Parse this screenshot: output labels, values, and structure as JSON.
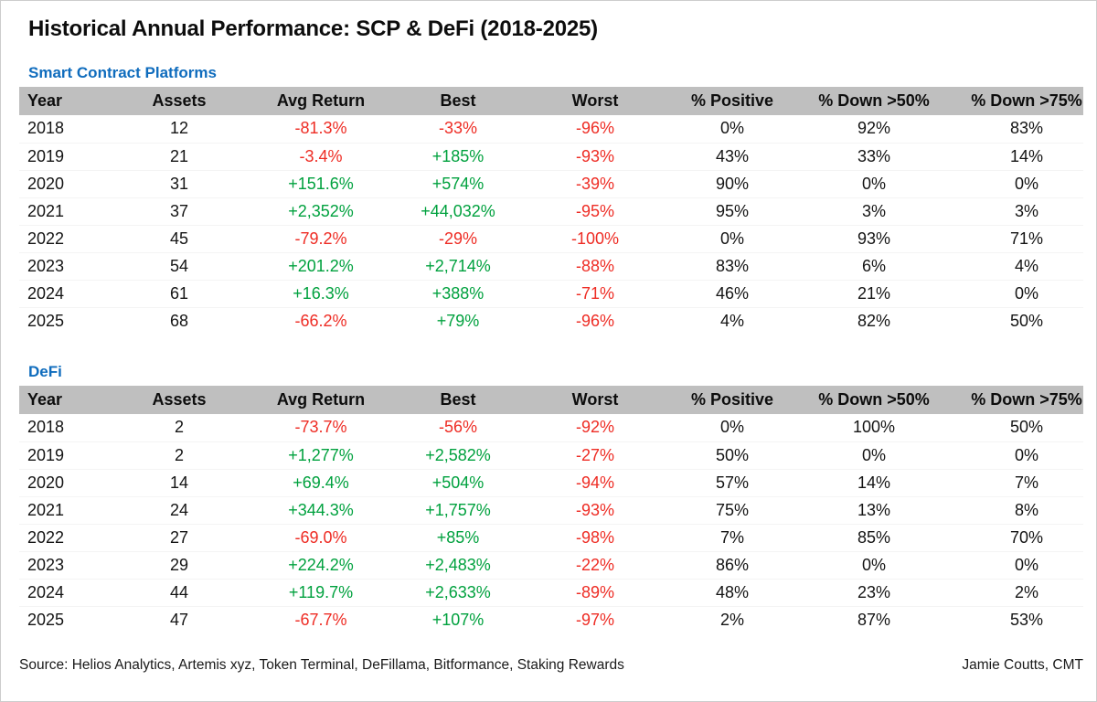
{
  "title": "Historical Annual Performance: SCP & DeFi (2018-2025)",
  "colors": {
    "pos": "#00a13e",
    "neg": "#ee2c24",
    "section": "#0f6cbd",
    "header_bg": "#bfbfbf"
  },
  "chart_data": [
    {
      "type": "table",
      "title": "Smart Contract Platforms",
      "columns": [
        "Year",
        "Assets",
        "Avg Return",
        "Best",
        "Worst",
        "% Positive",
        "% Down >50%",
        "% Down >75%"
      ],
      "rows": [
        [
          "2018",
          "12",
          "-81.3%",
          "-33%",
          "-96%",
          "0%",
          "92%",
          "83%"
        ],
        [
          "2019",
          "21",
          "-3.4%",
          "+185%",
          "-93%",
          "43%",
          "33%",
          "14%"
        ],
        [
          "2020",
          "31",
          "+151.6%",
          "+574%",
          "-39%",
          "90%",
          "0%",
          "0%"
        ],
        [
          "2021",
          "37",
          "+2,352%",
          "+44,032%",
          "-95%",
          "95%",
          "3%",
          "3%"
        ],
        [
          "2022",
          "45",
          "-79.2%",
          "-29%",
          "-100%",
          "0%",
          "93%",
          "71%"
        ],
        [
          "2023",
          "54",
          "+201.2%",
          "+2,714%",
          "-88%",
          "83%",
          "6%",
          "4%"
        ],
        [
          "2024",
          "61",
          "+16.3%",
          "+388%",
          "-71%",
          "46%",
          "21%",
          "0%"
        ],
        [
          "2025",
          "68",
          "-66.2%",
          "+79%",
          "-96%",
          "4%",
          "82%",
          "50%"
        ]
      ]
    },
    {
      "type": "table",
      "title": "DeFi",
      "columns": [
        "Year",
        "Assets",
        "Avg Return",
        "Best",
        "Worst",
        "% Positive",
        "% Down >50%",
        "% Down >75%"
      ],
      "rows": [
        [
          "2018",
          "2",
          "-73.7%",
          "-56%",
          "-92%",
          "0%",
          "100%",
          "50%"
        ],
        [
          "2019",
          "2",
          "+1,277%",
          "+2,582%",
          "-27%",
          "50%",
          "0%",
          "0%"
        ],
        [
          "2020",
          "14",
          "+69.4%",
          "+504%",
          "-94%",
          "57%",
          "14%",
          "7%"
        ],
        [
          "2021",
          "24",
          "+344.3%",
          "+1,757%",
          "-93%",
          "75%",
          "13%",
          "8%"
        ],
        [
          "2022",
          "27",
          "-69.0%",
          "+85%",
          "-98%",
          "7%",
          "85%",
          "70%"
        ],
        [
          "2023",
          "29",
          "+224.2%",
          "+2,483%",
          "-22%",
          "86%",
          "0%",
          "0%"
        ],
        [
          "2024",
          "44",
          "+119.7%",
          "+2,633%",
          "-89%",
          "48%",
          "23%",
          "2%"
        ],
        [
          "2025",
          "47",
          "-67.7%",
          "+107%",
          "-97%",
          "2%",
          "87%",
          "53%"
        ]
      ]
    }
  ],
  "footer": {
    "source": "Source: Helios Analytics, Artemis xyz, Token Terminal, DeFillama, Bitformance, Staking Rewards",
    "author": "Jamie Coutts, CMT"
  }
}
